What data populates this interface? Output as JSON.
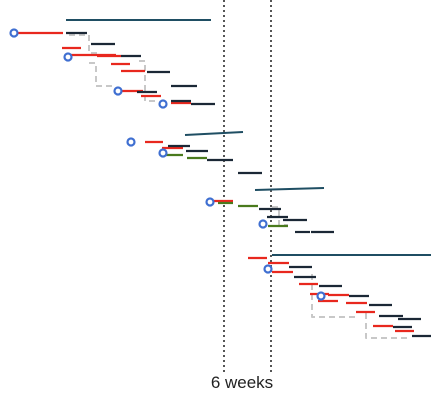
{
  "axis": {
    "label": "6 weeks"
  },
  "colors": {
    "background": "#ffffff",
    "red": "#e8281e",
    "navy": "#1b2836",
    "teal": "#1f4e63",
    "green": "#4a7a1d",
    "gray_dash": "#c8c8c8",
    "milestone_ring": "#3f6fd1",
    "milestone_fill": "#ffffff",
    "guide": "#555555"
  },
  "legend": {
    "mark_types": [
      "red-bar",
      "navy-bar",
      "green-bar",
      "teal-summary-line",
      "gray-dependency-line",
      "milestone-circle",
      "vertical-guide"
    ]
  }
}
